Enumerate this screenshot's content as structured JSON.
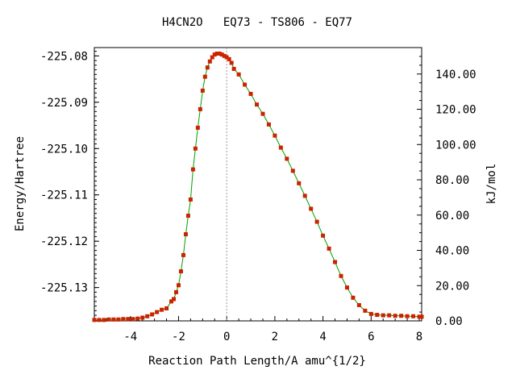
{
  "chart_data": {
    "type": "line",
    "title": "H4CN2O   EQ73 - TS806 - EQ77",
    "xlabel": "Reaction Path Length/A amu^{1/2}",
    "ylabel": "Energy/Hartree",
    "ylabel_right": "kJ/mol",
    "xlim": [
      -5.5,
      8.1
    ],
    "ylim": [
      -225.1372,
      -225.0782
    ],
    "y2lim": [
      0.0,
      155.0
    ],
    "x_ticks": [
      -4,
      -2,
      0,
      2,
      4,
      6,
      8
    ],
    "x_tick_labels": [
      "-4",
      "-2",
      "0",
      "2",
      "4",
      "6",
      "8"
    ],
    "y_ticks": [
      -225.08,
      -225.09,
      -225.1,
      -225.11,
      -225.12,
      -225.13
    ],
    "y_tick_labels": [
      "-225.08",
      "-225.09",
      "-225.10",
      "-225.11",
      "-225.12",
      "-225.13"
    ],
    "y2_ticks": [
      0,
      20,
      40,
      60,
      80,
      100,
      120,
      140
    ],
    "y2_tick_labels": [
      "0.00",
      "20.00",
      "40.00",
      "60.00",
      "80.00",
      "100.00",
      "120.00",
      "140.00"
    ],
    "ts_marker_x": 0,
    "line_color": "#00a000",
    "marker_color": "#cc2200",
    "dashed_line_color": "#999999",
    "grid": false,
    "series": [
      {
        "x": [
          -5.5,
          -5.3,
          -5.1,
          -4.9,
          -4.7,
          -4.5,
          -4.3,
          -4.1,
          -3.9,
          -3.7,
          -3.5,
          -3.3,
          -3.1,
          -2.9,
          -2.7,
          -2.5,
          -2.3,
          -2.2,
          -2.1,
          -2.0,
          -1.9,
          -1.8,
          -1.7,
          -1.6,
          -1.5,
          -1.4,
          -1.3,
          -1.2,
          -1.1,
          -1.0,
          -0.9,
          -0.8,
          -0.7,
          -0.6,
          -0.5,
          -0.4,
          -0.3,
          -0.2,
          -0.1,
          0.0,
          0.1,
          0.2,
          0.3,
          0.5,
          0.75,
          1.0,
          1.25,
          1.5,
          1.75,
          2.0,
          2.25,
          2.5,
          2.75,
          3.0,
          3.25,
          3.5,
          3.75,
          4.0,
          4.25,
          4.5,
          4.75,
          5.0,
          5.25,
          5.5,
          5.75,
          6.0,
          6.25,
          6.5,
          6.75,
          7.0,
          7.25,
          7.5,
          7.75,
          8.0,
          8.1
        ],
        "y": [
          -225.137,
          -225.137,
          -225.137,
          -225.1369,
          -225.1369,
          -225.1369,
          -225.1368,
          -225.1368,
          -225.1368,
          -225.1367,
          -225.1365,
          -225.1362,
          -225.1358,
          -225.1353,
          -225.1348,
          -225.1345,
          -225.133,
          -225.1325,
          -225.131,
          -225.1295,
          -225.1265,
          -225.123,
          -225.1185,
          -225.1145,
          -225.111,
          -225.1045,
          -225.1,
          -225.0955,
          -225.0915,
          -225.0875,
          -225.0845,
          -225.0825,
          -225.0812,
          -225.0803,
          -225.0797,
          -225.0795,
          -225.0795,
          -225.0797,
          -225.08,
          -225.0803,
          -225.0807,
          -225.0815,
          -225.0828,
          -225.084,
          -225.0862,
          -225.0882,
          -225.0905,
          -225.0925,
          -225.0948,
          -225.0972,
          -225.0998,
          -225.1022,
          -225.1048,
          -225.1075,
          -225.1102,
          -225.113,
          -225.1158,
          -225.1188,
          -225.1216,
          -225.1245,
          -225.1275,
          -225.13,
          -225.1322,
          -225.1338,
          -225.135,
          -225.1357,
          -225.1359,
          -225.136,
          -225.136,
          -225.1361,
          -225.1361,
          -225.1362,
          -225.1362,
          -225.1363,
          -225.1363
        ]
      }
    ]
  }
}
